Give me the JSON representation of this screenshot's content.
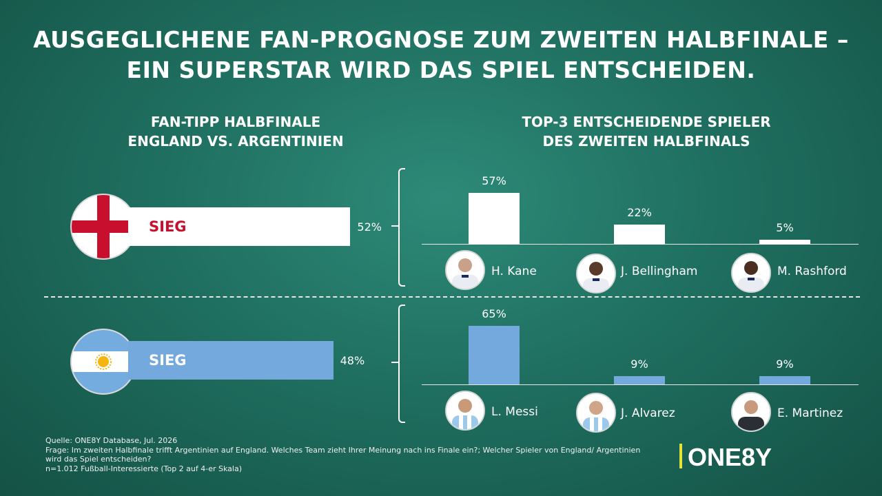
{
  "title_line1": "AUSGEGLICHENE FAN-PROGNOSE ZUM ZWEITEN HALBFINALE –",
  "title_line2": "EIN SUPERSTAR WIRD DAS SPIEL ENTSCHEIDEN.",
  "left_heading": [
    "FAN-TIPP HALBFINALE",
    "ENGLAND VS. ARGENTINIEN"
  ],
  "right_heading": [
    "TOP-3 ENTSCHEIDENDE SPIELER",
    "DES ZWEITEN HALBFINALS"
  ],
  "colors": {
    "england": "#ffffff",
    "argentina": "#74a9de",
    "england_label": "#c8102e",
    "background": "#1f6f60"
  },
  "chart_data": [
    {
      "type": "bar",
      "orientation": "horizontal",
      "categories": [
        "England",
        "Argentinien"
      ],
      "bar_label": "SIEG",
      "values": [
        52,
        48
      ],
      "value_labels": [
        "52%",
        "48%"
      ],
      "xlim": [
        0,
        100
      ]
    },
    {
      "type": "bar",
      "group": "England",
      "categories": [
        "H. Kane",
        "J. Bellingham",
        "M. Rashford"
      ],
      "values": [
        57,
        22,
        5
      ],
      "value_labels": [
        "57%",
        "22%",
        "5%"
      ],
      "ylim": [
        0,
        65
      ]
    },
    {
      "type": "bar",
      "group": "Argentinien",
      "categories": [
        "L. Messi",
        "J. Alvarez",
        "E. Martinez"
      ],
      "values": [
        65,
        9,
        9
      ],
      "value_labels": [
        "65%",
        "9%",
        "9%"
      ],
      "ylim": [
        0,
        65
      ]
    }
  ],
  "footnote": [
    "Quelle: ONE8Y Database, Jul. 2026",
    "Frage: Im zweiten Halbfinale trifft Argentinien auf England. Welches Team zieht Ihrer Meinung nach ins Finale ein?; Welcher Spieler von England/ Argentinien",
    "wird das Spiel entscheiden?",
    "n=1.012 Fußball-Interessierte (Top 2 auf 4-er Skala)"
  ],
  "logo": "ONE8Y"
}
